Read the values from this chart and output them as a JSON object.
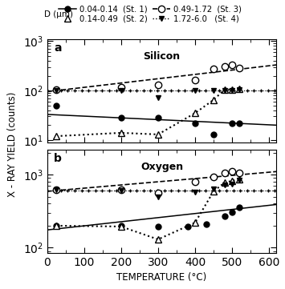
{
  "title_a": "Silicon",
  "title_b": "Oxygen",
  "xlabel": "TEMPERATURE (°C)",
  "ylabel": "X - RAY YIELD (counts)",
  "legend_label": "D (μm)",
  "legend_entries": [
    "0.04-0.14  (St. 1)",
    "0.14-0.49  (St. 2)",
    "0.49-1.72  (St. 3)",
    "1.72-6.0   (St. 4)"
  ],
  "xlim": [
    0,
    620
  ],
  "ylim_a": [
    9,
    1100
  ],
  "ylim_b": [
    85,
    2200
  ],
  "silicon": {
    "st1": {
      "x": [
        25,
        200,
        300,
        400,
        450,
        500,
        520
      ],
      "y": [
        50,
        28,
        28,
        22,
        13,
        22,
        22
      ],
      "line_x": [
        0,
        620
      ],
      "line_y": [
        33,
        20
      ]
    },
    "st2": {
      "x": [
        25,
        200,
        300,
        400,
        450,
        480,
        500,
        520
      ],
      "y": [
        12,
        14,
        13,
        35,
        65,
        105,
        105,
        110
      ]
    },
    "st3": {
      "x": [
        25,
        200,
        300,
        400,
        450,
        480,
        500,
        520
      ],
      "y": [
        105,
        115,
        130,
        165,
        270,
        310,
        330,
        280
      ],
      "line_x": [
        0,
        620
      ],
      "line_y": [
        95,
        330
      ]
    },
    "st4": {
      "x": [
        25,
        200,
        300,
        400,
        450,
        480,
        500,
        520
      ],
      "y": [
        100,
        100,
        72,
        100,
        100,
        100,
        100,
        105
      ],
      "cross_y": 100
    }
  },
  "oxygen": {
    "st1": {
      "x": [
        25,
        200,
        300,
        380,
        430,
        480,
        500,
        520
      ],
      "y": [
        200,
        200,
        195,
        195,
        210,
        270,
        310,
        360
      ],
      "line_x": [
        0,
        620
      ],
      "line_y": [
        175,
        390
      ]
    },
    "st2": {
      "x": [
        25,
        200,
        300,
        400,
        450,
        480,
        500,
        520
      ],
      "y": [
        200,
        195,
        130,
        220,
        590,
        780,
        820,
        870
      ]
    },
    "st3": {
      "x": [
        25,
        200,
        300,
        400,
        450,
        480,
        500,
        520
      ],
      "y": [
        620,
        620,
        560,
        800,
        920,
        1050,
        1100,
        1050
      ],
      "line_x": [
        0,
        620
      ],
      "line_y": [
        590,
        1100
      ]
    },
    "st4": {
      "x": [
        25,
        200,
        300,
        400,
        450,
        480,
        500,
        520
      ],
      "y": [
        620,
        600,
        490,
        580,
        640,
        730,
        750,
        840
      ],
      "cross_y": 610
    }
  }
}
